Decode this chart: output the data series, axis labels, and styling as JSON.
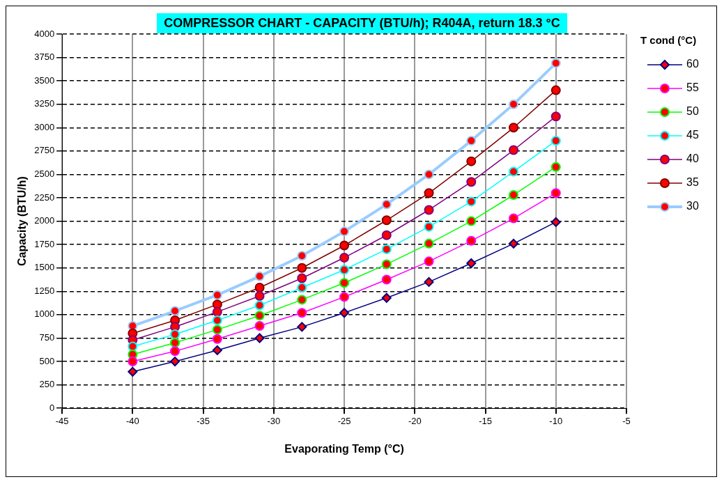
{
  "chart_data": {
    "type": "line",
    "title": "COMPRESSOR CHART - CAPACITY (BTU/h); R404A, return 18.3 °C",
    "xlabel": "Evaporating Temp (°C)",
    "ylabel": "Capacity (BTU/h)",
    "legend_title": "T cond (°C)",
    "x": [
      -40,
      -37,
      -34,
      -31,
      -28,
      -25,
      -22,
      -19,
      -16,
      -13,
      -10
    ],
    "series": [
      {
        "name": "60",
        "color": "#000080",
        "marker": "diamond",
        "values": [
          390,
          500,
          620,
          750,
          870,
          1020,
          1180,
          1350,
          1550,
          1760,
          1990
        ]
      },
      {
        "name": "55",
        "color": "#ff00ff",
        "marker": "circle",
        "values": [
          500,
          610,
          740,
          880,
          1020,
          1190,
          1375,
          1570,
          1790,
          2030,
          2300
        ]
      },
      {
        "name": "50",
        "color": "#00ff00",
        "marker": "circle",
        "values": [
          575,
          700,
          840,
          990,
          1160,
          1340,
          1540,
          1760,
          2000,
          2280,
          2580
        ]
      },
      {
        "name": "45",
        "color": "#00ffff",
        "marker": "circle",
        "values": [
          660,
          790,
          940,
          1100,
          1290,
          1480,
          1700,
          1940,
          2210,
          2530,
          2860
        ]
      },
      {
        "name": "40",
        "color": "#800080",
        "marker": "circle",
        "values": [
          730,
          870,
          1030,
          1200,
          1390,
          1610,
          1850,
          2120,
          2420,
          2760,
          3120
        ]
      },
      {
        "name": "35",
        "color": "#800000",
        "marker": "circle",
        "values": [
          800,
          940,
          1110,
          1290,
          1500,
          1740,
          2010,
          2300,
          2640,
          3000,
          3400
        ]
      },
      {
        "name": "30",
        "color": "#99ccff",
        "marker": "circle",
        "values": [
          880,
          1040,
          1210,
          1410,
          1630,
          1890,
          2180,
          2500,
          2860,
          3250,
          3690
        ]
      }
    ],
    "xlim": [
      -45,
      -5
    ],
    "xticks": [
      -45,
      -40,
      -35,
      -30,
      -25,
      -20,
      -15,
      -10,
      -5
    ],
    "ylim": [
      0,
      4000
    ],
    "yticks": [
      0,
      250,
      500,
      750,
      1000,
      1250,
      1500,
      1750,
      2000,
      2250,
      2500,
      2750,
      3000,
      3250,
      3500,
      3750,
      4000
    ],
    "grid": true,
    "legend": "right",
    "line_style": "solid"
  }
}
